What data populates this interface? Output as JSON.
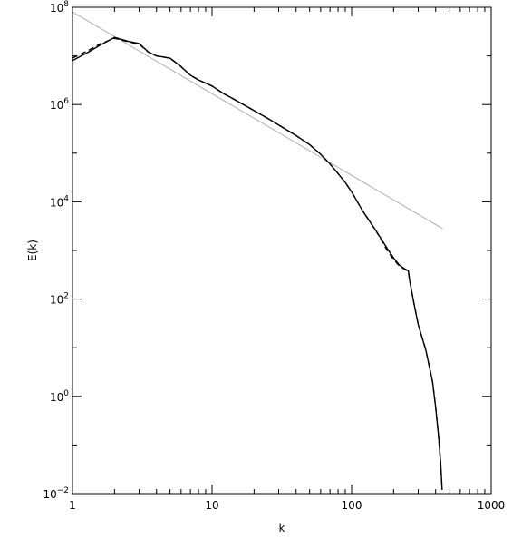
{
  "chart_data": {
    "type": "line",
    "title": "",
    "xlabel": "k",
    "ylabel": "E(k)",
    "x_scale": "log",
    "y_scale": "log",
    "xlim": [
      1,
      1000
    ],
    "ylim": [
      0.01,
      100000000
    ],
    "grid": false,
    "x_ticks": [
      {
        "value": 1,
        "label": "1"
      },
      {
        "value": 10,
        "label": "10"
      },
      {
        "value": 100,
        "label": "100"
      },
      {
        "value": 1000,
        "label": "1000"
      }
    ],
    "y_ticks": [
      {
        "value": 0.01,
        "base": "10",
        "exp": "−2"
      },
      {
        "value": 1,
        "base": "10",
        "exp": "0"
      },
      {
        "value": 100,
        "base": "10",
        "exp": "2"
      },
      {
        "value": 10000,
        "base": "10",
        "exp": "4"
      },
      {
        "value": 1000000,
        "base": "10",
        "exp": "6"
      },
      {
        "value": 100000000,
        "base": "10",
        "exp": "8"
      }
    ],
    "series": [
      {
        "style": "solid",
        "color": "#000000",
        "points": [
          [
            1,
            8000000
          ],
          [
            1.3,
            12000000
          ],
          [
            1.6,
            17000000
          ],
          [
            2,
            24000000
          ],
          [
            2.5,
            20000000
          ],
          [
            3,
            18000000
          ],
          [
            3.5,
            12000000
          ],
          [
            4,
            10000000
          ],
          [
            5,
            9000000
          ],
          [
            6,
            6000000
          ],
          [
            7,
            4000000
          ],
          [
            8,
            3200000
          ],
          [
            10,
            2400000
          ],
          [
            12,
            1700000
          ],
          [
            15,
            1200000
          ],
          [
            20,
            750000
          ],
          [
            25,
            520000
          ],
          [
            30,
            380000
          ],
          [
            40,
            230000
          ],
          [
            50,
            150000
          ],
          [
            60,
            95000
          ],
          [
            70,
            60000
          ],
          [
            80,
            38000
          ],
          [
            90,
            25000
          ],
          [
            100,
            16000
          ],
          [
            120,
            6500
          ],
          [
            150,
            2500
          ],
          [
            180,
            1100
          ],
          [
            200,
            700
          ],
          [
            220,
            500
          ],
          [
            240,
            420
          ],
          [
            255,
            380
          ],
          [
            260,
            250
          ],
          [
            280,
            80
          ],
          [
            300,
            30
          ],
          [
            340,
            9
          ],
          [
            380,
            2
          ],
          [
            400,
            0.6
          ],
          [
            420,
            0.15
          ],
          [
            435,
            0.04
          ],
          [
            445,
            0.012
          ]
        ]
      },
      {
        "style": "dashed",
        "color": "#000000",
        "points": [
          [
            1,
            9000000
          ],
          [
            1.3,
            13000000
          ],
          [
            1.6,
            18000000
          ],
          [
            2,
            23000000
          ],
          [
            2.5,
            19500000
          ],
          [
            3,
            17500000
          ],
          [
            3.5,
            12000000
          ],
          [
            4,
            10000000
          ],
          [
            5,
            9000000
          ],
          [
            6,
            6000000
          ],
          [
            7,
            4000000
          ],
          [
            8,
            3200000
          ],
          [
            10,
            2400000
          ],
          [
            12,
            1700000
          ],
          [
            15,
            1200000
          ],
          [
            20,
            750000
          ],
          [
            25,
            520000
          ],
          [
            30,
            380000
          ],
          [
            40,
            230000
          ],
          [
            50,
            150000
          ],
          [
            60,
            95000
          ],
          [
            70,
            60000
          ],
          [
            80,
            38000
          ],
          [
            90,
            25000
          ],
          [
            100,
            16000
          ],
          [
            120,
            6500
          ],
          [
            150,
            2500
          ],
          [
            180,
            1000
          ],
          [
            200,
            650
          ],
          [
            220,
            480
          ],
          [
            240,
            410
          ],
          [
            255,
            370
          ],
          [
            260,
            250
          ],
          [
            280,
            80
          ],
          [
            300,
            30
          ],
          [
            340,
            9
          ],
          [
            380,
            2
          ],
          [
            400,
            0.6
          ],
          [
            420,
            0.15
          ],
          [
            435,
            0.04
          ],
          [
            445,
            0.012
          ]
        ]
      },
      {
        "style": "solid",
        "color": "#b0b0b0",
        "points": [
          [
            1,
            80000000
          ],
          [
            450,
            2800
          ]
        ]
      }
    ]
  }
}
